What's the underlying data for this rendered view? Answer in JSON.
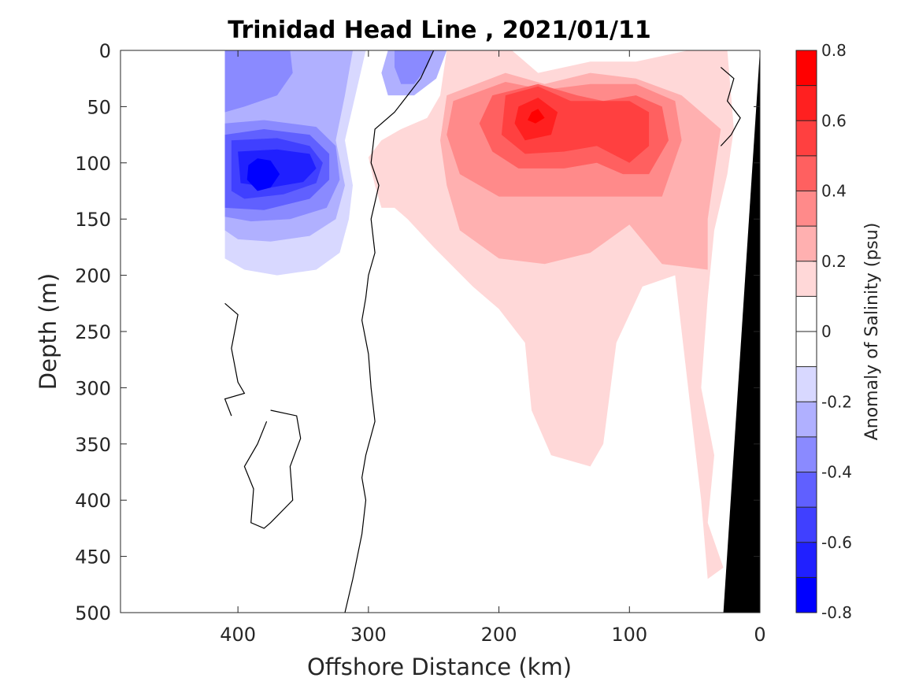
{
  "chart_data": {
    "type": "heatmap",
    "title": "Trinidad Head Line , 2021/01/11",
    "xlabel": "Offshore Distance (km)",
    "ylabel": "Depth (m)",
    "xlim": [
      490,
      0
    ],
    "ylim": [
      0,
      500
    ],
    "x_ticks": [
      400,
      300,
      200,
      100,
      0
    ],
    "y_ticks": [
      0,
      50,
      100,
      150,
      200,
      250,
      300,
      350,
      400,
      450,
      500
    ],
    "colorbar": {
      "label": "Anomaly of Salinity (psu)",
      "limits": [
        -0.8,
        0.8
      ],
      "ticks": [
        0.8,
        0.6,
        0.4,
        0.2,
        0,
        -0.2,
        -0.4,
        -0.6,
        -0.8
      ],
      "levels": [
        {
          "from": 0.7,
          "to": 0.8,
          "color": "#ff0000"
        },
        {
          "from": 0.6,
          "to": 0.7,
          "color": "#ff2020"
        },
        {
          "from": 0.5,
          "to": 0.6,
          "color": "#ff4040"
        },
        {
          "from": 0.4,
          "to": 0.5,
          "color": "#ff6060"
        },
        {
          "from": 0.3,
          "to": 0.4,
          "color": "#ff8a8a"
        },
        {
          "from": 0.2,
          "to": 0.3,
          "color": "#ffb0b0"
        },
        {
          "from": 0.1,
          "to": 0.2,
          "color": "#ffd8d8"
        },
        {
          "from": 0.0,
          "to": 0.1,
          "color": "#ffffff"
        },
        {
          "from": -0.1,
          "to": 0.0,
          "color": "#ffffff"
        },
        {
          "from": -0.2,
          "to": -0.1,
          "color": "#d8d8ff"
        },
        {
          "from": -0.3,
          "to": -0.2,
          "color": "#b0b0ff"
        },
        {
          "from": -0.4,
          "to": -0.3,
          "color": "#8a8aff"
        },
        {
          "from": -0.5,
          "to": -0.4,
          "color": "#6060ff"
        },
        {
          "from": -0.6,
          "to": -0.5,
          "color": "#4040ff"
        },
        {
          "from": -0.7,
          "to": -0.6,
          "color": "#2020ff"
        },
        {
          "from": -0.8,
          "to": -0.7,
          "color": "#0000ff"
        }
      ]
    },
    "regions": [
      {
        "name": "neg-1",
        "color": "#d8d8ff",
        "points": [
          [
            410,
            0
          ],
          [
            302,
            0
          ],
          [
            310,
            40
          ],
          [
            318,
            80
          ],
          [
            312,
            120
          ],
          [
            315,
            150
          ],
          [
            322,
            180
          ],
          [
            340,
            195
          ],
          [
            370,
            200
          ],
          [
            395,
            195
          ],
          [
            410,
            185
          ]
        ]
      },
      {
        "name": "neg-2",
        "color": "#b0b0ff",
        "points": [
          [
            410,
            0
          ],
          [
            312,
            0
          ],
          [
            318,
            40
          ],
          [
            325,
            80
          ],
          [
            318,
            120
          ],
          [
            325,
            150
          ],
          [
            345,
            165
          ],
          [
            375,
            170
          ],
          [
            400,
            168
          ],
          [
            410,
            160
          ]
        ]
      },
      {
        "name": "neg-2b",
        "color": "#b0b0ff",
        "points": [
          [
            285,
            0
          ],
          [
            240,
            0
          ],
          [
            248,
            25
          ],
          [
            265,
            40
          ],
          [
            285,
            40
          ],
          [
            290,
            20
          ]
        ]
      },
      {
        "name": "neg-3",
        "color": "#8a8aff",
        "points": [
          [
            410,
            0
          ],
          [
            360,
            0
          ],
          [
            358,
            20
          ],
          [
            370,
            40
          ],
          [
            395,
            50
          ],
          [
            410,
            55
          ]
        ]
      },
      {
        "name": "neg-3b",
        "color": "#8a8aff",
        "points": [
          [
            280,
            0
          ],
          [
            250,
            0
          ],
          [
            255,
            15
          ],
          [
            265,
            30
          ],
          [
            275,
            30
          ],
          [
            280,
            15
          ]
        ]
      },
      {
        "name": "neg-3c",
        "color": "#8a8aff",
        "points": [
          [
            410,
            65
          ],
          [
            380,
            62
          ],
          [
            340,
            68
          ],
          [
            325,
            85
          ],
          [
            322,
            115
          ],
          [
            332,
            140
          ],
          [
            360,
            150
          ],
          [
            390,
            152
          ],
          [
            410,
            148
          ]
        ]
      },
      {
        "name": "neg-4",
        "color": "#6060ff",
        "points": [
          [
            410,
            75
          ],
          [
            380,
            70
          ],
          [
            345,
            75
          ],
          [
            330,
            92
          ],
          [
            330,
            115
          ],
          [
            345,
            132
          ],
          [
            380,
            142
          ],
          [
            410,
            140
          ]
        ]
      },
      {
        "name": "neg-5",
        "color": "#4040ff",
        "points": [
          [
            405,
            80
          ],
          [
            370,
            78
          ],
          [
            345,
            85
          ],
          [
            335,
            100
          ],
          [
            340,
            118
          ],
          [
            365,
            128
          ],
          [
            395,
            132
          ],
          [
            405,
            125
          ]
        ]
      },
      {
        "name": "neg-6",
        "color": "#2020ff",
        "points": [
          [
            400,
            90
          ],
          [
            370,
            88
          ],
          [
            345,
            92
          ],
          [
            340,
            105
          ],
          [
            350,
            117
          ],
          [
            375,
            122
          ],
          [
            398,
            118
          ]
        ]
      },
      {
        "name": "neg-7",
        "color": "#0000ff",
        "points": [
          [
            385,
            96
          ],
          [
            375,
            98
          ],
          [
            368,
            110
          ],
          [
            375,
            122
          ],
          [
            385,
            125
          ],
          [
            393,
            115
          ],
          [
            392,
            102
          ]
        ]
      },
      {
        "name": "pos-1",
        "color": "#ffd8d8",
        "points": [
          [
            240,
            0
          ],
          [
            190,
            0
          ],
          [
            170,
            20
          ],
          [
            130,
            10
          ],
          [
            95,
            10
          ],
          [
            55,
            0
          ],
          [
            25,
            0
          ],
          [
            20,
            70
          ],
          [
            25,
            110
          ],
          [
            35,
            160
          ],
          [
            40,
            220
          ],
          [
            45,
            300
          ],
          [
            35,
            360
          ],
          [
            40,
            420
          ],
          [
            28,
            460
          ],
          [
            40,
            470
          ],
          [
            45,
            400
          ],
          [
            50,
            350
          ],
          [
            60,
            250
          ],
          [
            65,
            200
          ],
          [
            90,
            210
          ],
          [
            110,
            260
          ],
          [
            120,
            350
          ],
          [
            130,
            370
          ],
          [
            160,
            360
          ],
          [
            175,
            320
          ],
          [
            180,
            260
          ],
          [
            200,
            230
          ],
          [
            220,
            210
          ],
          [
            250,
            175
          ],
          [
            270,
            150
          ],
          [
            280,
            140
          ],
          [
            290,
            140
          ],
          [
            295,
            120
          ],
          [
            300,
            95
          ],
          [
            290,
            80
          ],
          [
            275,
            70
          ],
          [
            255,
            60
          ],
          [
            245,
            40
          ]
        ]
      },
      {
        "name": "pos-2",
        "color": "#ffb0b0",
        "points": [
          [
            240,
            40
          ],
          [
            195,
            20
          ],
          [
            165,
            30
          ],
          [
            130,
            20
          ],
          [
            95,
            25
          ],
          [
            60,
            40
          ],
          [
            30,
            70
          ],
          [
            35,
            110
          ],
          [
            40,
            150
          ],
          [
            40,
            195
          ],
          [
            75,
            190
          ],
          [
            100,
            155
          ],
          [
            130,
            180
          ],
          [
            165,
            190
          ],
          [
            200,
            185
          ],
          [
            230,
            160
          ],
          [
            240,
            120
          ],
          [
            245,
            80
          ]
        ]
      },
      {
        "name": "pos-3",
        "color": "#ff8a8a",
        "points": [
          [
            235,
            45
          ],
          [
            195,
            28
          ],
          [
            165,
            35
          ],
          [
            130,
            30
          ],
          [
            95,
            30
          ],
          [
            65,
            45
          ],
          [
            60,
            80
          ],
          [
            75,
            130
          ],
          [
            110,
            130
          ],
          [
            150,
            130
          ],
          [
            200,
            130
          ],
          [
            230,
            110
          ],
          [
            240,
            75
          ]
        ]
      },
      {
        "name": "pos-4",
        "color": "#ff6060",
        "points": [
          [
            205,
            40
          ],
          [
            170,
            30
          ],
          [
            140,
            40
          ],
          [
            120,
            45
          ],
          [
            95,
            40
          ],
          [
            75,
            50
          ],
          [
            70,
            80
          ],
          [
            85,
            110
          ],
          [
            105,
            110
          ],
          [
            125,
            100
          ],
          [
            150,
            105
          ],
          [
            185,
            105
          ],
          [
            205,
            90
          ],
          [
            215,
            65
          ]
        ]
      },
      {
        "name": "pos-5",
        "color": "#ff4040",
        "points": [
          [
            195,
            40
          ],
          [
            170,
            32
          ],
          [
            145,
            45
          ],
          [
            100,
            45
          ],
          [
            85,
            55
          ],
          [
            85,
            85
          ],
          [
            100,
            100
          ],
          [
            125,
            85
          ],
          [
            150,
            90
          ],
          [
            180,
            92
          ],
          [
            198,
            75
          ]
        ]
      },
      {
        "name": "pos-6",
        "color": "#ff2020",
        "points": [
          [
            185,
            50
          ],
          [
            170,
            42
          ],
          [
            155,
            55
          ],
          [
            160,
            75
          ],
          [
            180,
            80
          ],
          [
            188,
            65
          ]
        ]
      },
      {
        "name": "pos-7",
        "color": "#ff0000",
        "points": [
          [
            175,
            55
          ],
          [
            170,
            52
          ],
          [
            165,
            60
          ],
          [
            172,
            65
          ],
          [
            178,
            62
          ]
        ]
      }
    ],
    "zero_contours": [
      {
        "points": [
          [
            318,
            500
          ],
          [
            312,
            470
          ],
          [
            305,
            430
          ],
          [
            302,
            400
          ],
          [
            305,
            380
          ],
          [
            302,
            360
          ],
          [
            295,
            330
          ],
          [
            298,
            300
          ],
          [
            300,
            270
          ],
          [
            305,
            240
          ],
          [
            302,
            220
          ],
          [
            300,
            200
          ],
          [
            295,
            180
          ],
          [
            298,
            150
          ],
          [
            292,
            120
          ],
          [
            298,
            100
          ],
          [
            295,
            70
          ],
          [
            280,
            55
          ],
          [
            270,
            40
          ],
          [
            260,
            25
          ],
          [
            250,
            0
          ]
        ]
      },
      {
        "points": [
          [
            410,
            225
          ],
          [
            400,
            235
          ],
          [
            405,
            265
          ],
          [
            400,
            295
          ],
          [
            395,
            305
          ],
          [
            410,
            310
          ],
          [
            405,
            325
          ]
        ]
      },
      {
        "points": [
          [
            375,
            320
          ],
          [
            355,
            325
          ],
          [
            352,
            345
          ],
          [
            360,
            370
          ],
          [
            358,
            400
          ],
          [
            375,
            420
          ],
          [
            380,
            425
          ],
          [
            390,
            420
          ],
          [
            388,
            390
          ],
          [
            395,
            370
          ],
          [
            385,
            350
          ],
          [
            378,
            330
          ]
        ]
      },
      {
        "points": [
          [
            30,
            15
          ],
          [
            20,
            25
          ],
          [
            25,
            45
          ],
          [
            15,
            60
          ],
          [
            22,
            75
          ],
          [
            30,
            85
          ]
        ]
      }
    ],
    "bathymetry": {
      "color": "#000000",
      "points": [
        [
          0,
          0
        ],
        [
          0,
          500
        ],
        [
          28,
          500
        ]
      ]
    }
  }
}
